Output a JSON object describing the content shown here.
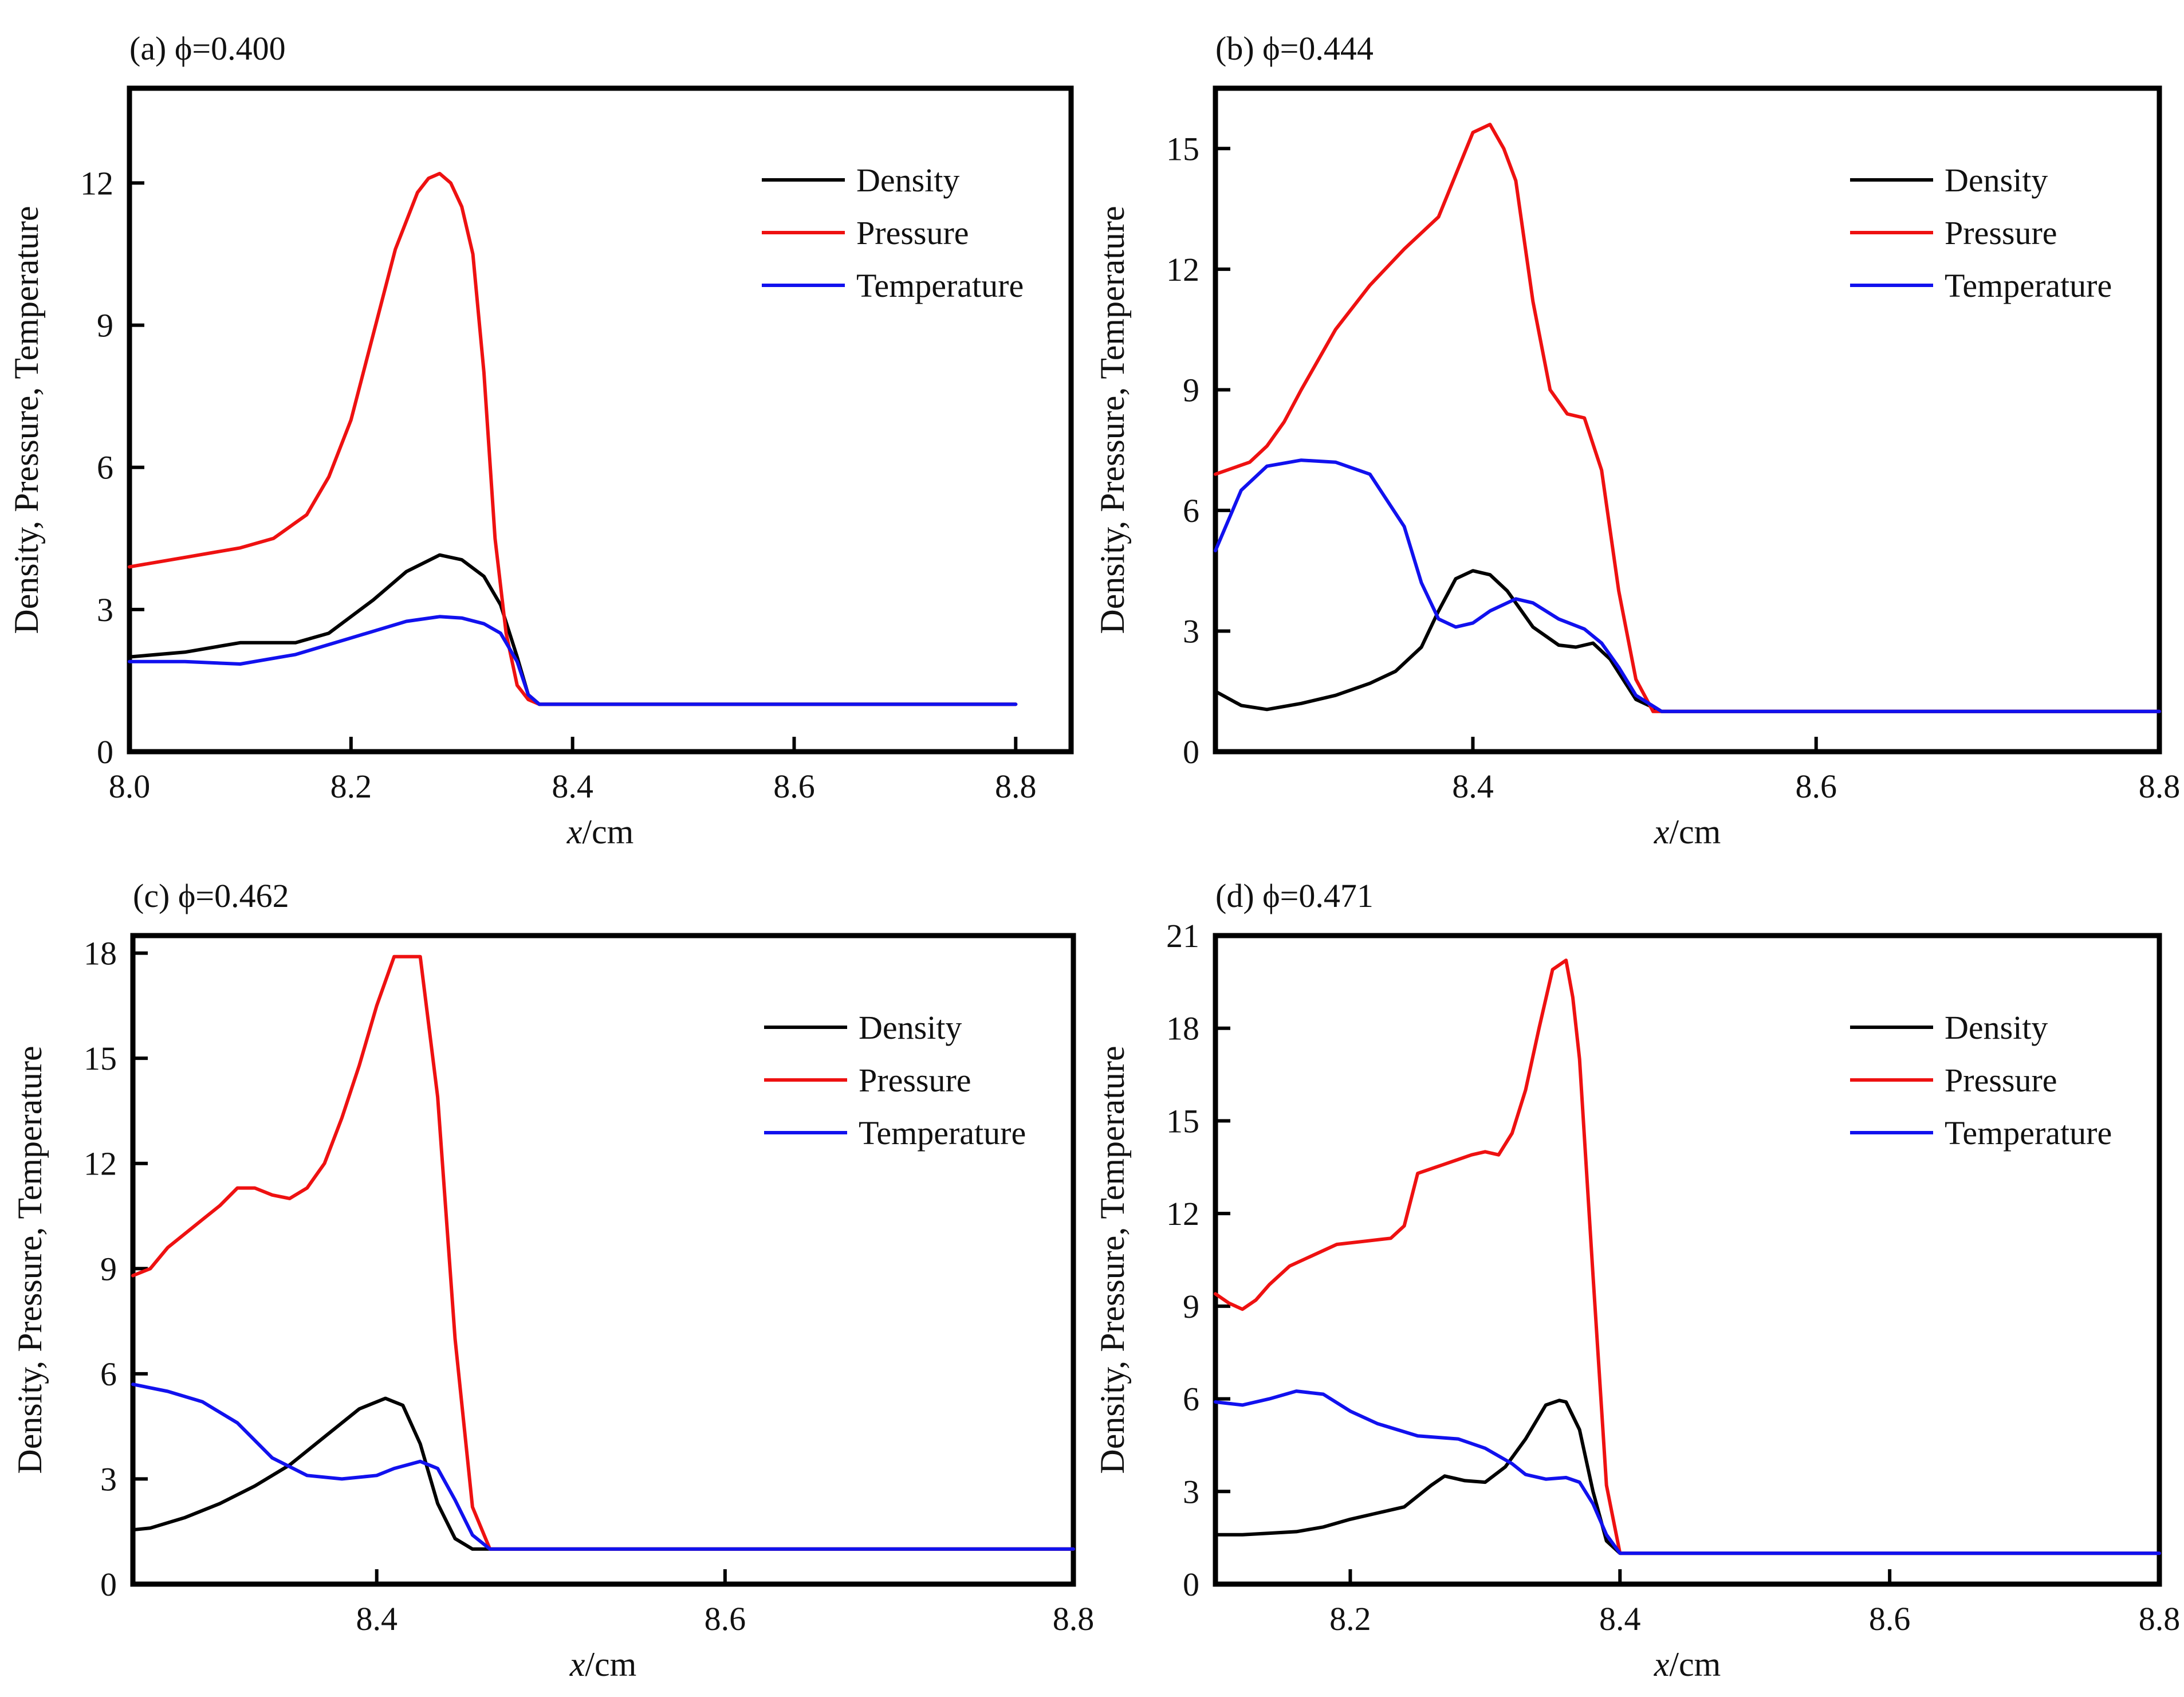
{
  "legend_labels": {
    "density": "Density",
    "pressure": "Pressure",
    "temperature": "Temperature"
  },
  "colors": {
    "density": "#000000",
    "pressure": "#ee1111",
    "temperature": "#1111ee"
  },
  "chart_data": [
    {
      "type": "line",
      "title": "(a) ϕ=0.400",
      "xlabel": "x/cm",
      "ylabel": "Density, Pressure, Temperature",
      "xlim": [
        8.0,
        8.85
      ],
      "ylim": [
        0,
        14.0
      ],
      "xticks": [
        8.0,
        8.2,
        8.4,
        8.6,
        8.8
      ],
      "xtick_labels": [
        "8.0",
        "8.2",
        "8.4",
        "8.6",
        "8.8"
      ],
      "yticks": [
        0,
        3,
        6,
        9,
        12
      ],
      "ytick_labels": [
        "0",
        "3",
        "6",
        "9",
        "12"
      ],
      "grid": false,
      "legend_position": "top-right",
      "series": [
        {
          "name": "Density",
          "key": "density",
          "x": [
            8.0,
            8.05,
            8.1,
            8.15,
            8.18,
            8.22,
            8.25,
            8.28,
            8.3,
            8.32,
            8.335,
            8.35,
            8.36,
            8.37,
            8.4,
            8.6,
            8.8
          ],
          "y": [
            2.0,
            2.1,
            2.3,
            2.3,
            2.5,
            3.2,
            3.8,
            4.15,
            4.05,
            3.7,
            3.1,
            2.0,
            1.2,
            1.0,
            1.0,
            1.0,
            1.0
          ]
        },
        {
          "name": "Pressure",
          "key": "pressure",
          "x": [
            8.0,
            8.05,
            8.1,
            8.13,
            8.16,
            8.18,
            8.2,
            8.22,
            8.24,
            8.26,
            8.27,
            8.28,
            8.29,
            8.3,
            8.31,
            8.32,
            8.33,
            8.34,
            8.35,
            8.36,
            8.37,
            8.4,
            8.6,
            8.8
          ],
          "y": [
            3.9,
            4.1,
            4.3,
            4.5,
            5.0,
            5.8,
            7.0,
            8.8,
            10.6,
            11.8,
            12.1,
            12.2,
            12.0,
            11.5,
            10.5,
            8.0,
            4.5,
            2.5,
            1.4,
            1.1,
            1.0,
            1.0,
            1.0,
            1.0
          ]
        },
        {
          "name": "Temperature",
          "key": "temperature",
          "x": [
            8.0,
            8.05,
            8.1,
            8.15,
            8.2,
            8.25,
            8.28,
            8.3,
            8.32,
            8.335,
            8.35,
            8.36,
            8.37,
            8.4,
            8.6,
            8.8
          ],
          "y": [
            1.9,
            1.9,
            1.85,
            2.05,
            2.4,
            2.75,
            2.85,
            2.82,
            2.7,
            2.5,
            1.9,
            1.2,
            1.0,
            1.0,
            1.0,
            1.0
          ]
        }
      ]
    },
    {
      "type": "line",
      "title": "(b) ϕ=0.444",
      "xlabel": "x/cm",
      "ylabel": "Density, Pressure, Temperature",
      "xlim": [
        8.25,
        8.8
      ],
      "ylim": [
        0,
        16.5
      ],
      "xticks": [
        8.4,
        8.6,
        8.8
      ],
      "xtick_labels": [
        "8.4",
        "8.6",
        "8.8"
      ],
      "yticks": [
        0,
        3,
        6,
        9,
        12,
        15
      ],
      "ytick_labels": [
        "0",
        "3",
        "6",
        "9",
        "12",
        "15"
      ],
      "grid": false,
      "legend_position": "top-right",
      "series": [
        {
          "name": "Density",
          "key": "density",
          "x": [
            8.25,
            8.265,
            8.28,
            8.3,
            8.32,
            8.34,
            8.355,
            8.37,
            8.38,
            8.39,
            8.4,
            8.41,
            8.42,
            8.435,
            8.45,
            8.46,
            8.47,
            8.48,
            8.495,
            8.51,
            8.6,
            8.8
          ],
          "y": [
            1.5,
            1.15,
            1.05,
            1.2,
            1.4,
            1.7,
            2.0,
            2.6,
            3.5,
            4.3,
            4.5,
            4.4,
            4.0,
            3.1,
            2.65,
            2.6,
            2.7,
            2.3,
            1.3,
            1.0,
            1.0,
            1.0
          ]
        },
        {
          "name": "Pressure",
          "key": "pressure",
          "x": [
            8.25,
            8.27,
            8.28,
            8.29,
            8.3,
            8.32,
            8.34,
            8.36,
            8.38,
            8.4,
            8.41,
            8.418,
            8.425,
            8.435,
            8.445,
            8.455,
            8.465,
            8.475,
            8.485,
            8.495,
            8.505,
            8.6,
            8.8
          ],
          "y": [
            6.9,
            7.2,
            7.6,
            8.2,
            9.0,
            10.5,
            11.6,
            12.5,
            13.3,
            15.4,
            15.6,
            15.0,
            14.2,
            11.2,
            9.0,
            8.4,
            8.3,
            7.0,
            4.0,
            1.8,
            1.0,
            1.0,
            1.0
          ]
        },
        {
          "name": "Temperature",
          "key": "temperature",
          "x": [
            8.25,
            8.265,
            8.28,
            8.3,
            8.32,
            8.34,
            8.36,
            8.37,
            8.38,
            8.39,
            8.4,
            8.41,
            8.425,
            8.435,
            8.45,
            8.465,
            8.475,
            8.485,
            8.495,
            8.51,
            8.6,
            8.8
          ],
          "y": [
            5.0,
            6.5,
            7.1,
            7.25,
            7.2,
            6.9,
            5.6,
            4.2,
            3.3,
            3.1,
            3.2,
            3.5,
            3.8,
            3.7,
            3.3,
            3.05,
            2.7,
            2.1,
            1.4,
            1.0,
            1.0,
            1.0
          ]
        }
      ]
    },
    {
      "type": "line",
      "title": "(c) ϕ=0.462",
      "xlabel": "x/cm",
      "ylabel": "Density, Pressure, Temperature",
      "xlim": [
        8.26,
        8.8
      ],
      "ylim": [
        0,
        18.5
      ],
      "xticks": [
        8.4,
        8.6,
        8.8
      ],
      "xtick_labels": [
        "8.4",
        "8.6",
        "8.8"
      ],
      "yticks": [
        0,
        3,
        6,
        9,
        12,
        15,
        18
      ],
      "ytick_labels": [
        "0",
        "3",
        "6",
        "9",
        "12",
        "15",
        "18"
      ],
      "grid": false,
      "legend_position": "top-right",
      "series": [
        {
          "name": "Density",
          "key": "density",
          "x": [
            8.26,
            8.27,
            8.29,
            8.31,
            8.33,
            8.35,
            8.37,
            8.39,
            8.405,
            8.415,
            8.425,
            8.435,
            8.445,
            8.455,
            8.465,
            8.6,
            8.8
          ],
          "y": [
            1.55,
            1.6,
            1.9,
            2.3,
            2.8,
            3.4,
            4.2,
            5.0,
            5.3,
            5.1,
            4.0,
            2.3,
            1.3,
            1.0,
            1.0,
            1.0,
            1.0
          ]
        },
        {
          "name": "Pressure",
          "key": "pressure",
          "x": [
            8.26,
            8.27,
            8.28,
            8.3,
            8.31,
            8.32,
            8.33,
            8.34,
            8.35,
            8.36,
            8.37,
            8.38,
            8.39,
            8.4,
            8.41,
            8.415,
            8.425,
            8.435,
            8.445,
            8.455,
            8.465,
            8.6,
            8.8
          ],
          "y": [
            8.8,
            9.0,
            9.6,
            10.4,
            10.8,
            11.3,
            11.3,
            11.1,
            11.0,
            11.3,
            12.0,
            13.3,
            14.8,
            16.5,
            17.9,
            17.9,
            17.9,
            13.9,
            7.0,
            2.2,
            1.0,
            1.0,
            1.0
          ]
        },
        {
          "name": "Temperature",
          "key": "temperature",
          "x": [
            8.26,
            8.28,
            8.3,
            8.32,
            8.34,
            8.36,
            8.38,
            8.4,
            8.41,
            8.425,
            8.435,
            8.445,
            8.455,
            8.465,
            8.6,
            8.8
          ],
          "y": [
            5.7,
            5.5,
            5.2,
            4.6,
            3.6,
            3.1,
            3.0,
            3.1,
            3.3,
            3.5,
            3.3,
            2.4,
            1.4,
            1.0,
            1.0,
            1.0
          ]
        }
      ]
    },
    {
      "type": "line",
      "title": "(d) ϕ=0.471",
      "xlabel": "x/cm",
      "ylabel": "Density, Pressure, Temperature",
      "xlim": [
        8.1,
        8.8
      ],
      "ylim": [
        0,
        21
      ],
      "xticks": [
        8.2,
        8.4,
        8.6,
        8.8
      ],
      "xtick_labels": [
        "8.2",
        "8.4",
        "8.6",
        "8.8"
      ],
      "yticks": [
        0,
        3,
        6,
        9,
        12,
        15,
        18,
        21
      ],
      "ytick_labels": [
        "0",
        "3",
        "6",
        "9",
        "12",
        "15",
        "18",
        "21"
      ],
      "grid": false,
      "legend_position": "top-right",
      "series": [
        {
          "name": "Density",
          "key": "density",
          "x": [
            8.1,
            8.12,
            8.14,
            8.16,
            8.18,
            8.2,
            8.22,
            8.24,
            8.26,
            8.27,
            8.285,
            8.3,
            8.315,
            8.33,
            8.345,
            8.355,
            8.36,
            8.37,
            8.38,
            8.39,
            8.4,
            8.6,
            8.8
          ],
          "y": [
            1.6,
            1.6,
            1.65,
            1.7,
            1.85,
            2.1,
            2.3,
            2.5,
            3.2,
            3.5,
            3.35,
            3.3,
            3.8,
            4.7,
            5.8,
            5.95,
            5.9,
            5.0,
            3.0,
            1.4,
            1.0,
            1.0,
            1.0
          ]
        },
        {
          "name": "Pressure",
          "key": "pressure",
          "x": [
            8.1,
            8.11,
            8.12,
            8.13,
            8.14,
            8.155,
            8.17,
            8.19,
            8.21,
            8.23,
            8.24,
            8.25,
            8.27,
            8.29,
            8.3,
            8.31,
            8.32,
            8.33,
            8.34,
            8.35,
            8.36,
            8.365,
            8.37,
            8.38,
            8.39,
            8.4,
            8.6,
            8.8
          ],
          "y": [
            9.4,
            9.1,
            8.9,
            9.2,
            9.7,
            10.3,
            10.6,
            11.0,
            11.1,
            11.2,
            11.6,
            13.3,
            13.6,
            13.9,
            14.0,
            13.9,
            14.6,
            16.0,
            18.0,
            19.9,
            20.2,
            19.0,
            17.0,
            10.0,
            3.2,
            1.0,
            1.0,
            1.0
          ]
        },
        {
          "name": "Temperature",
          "key": "temperature",
          "x": [
            8.1,
            8.12,
            8.14,
            8.16,
            8.18,
            8.2,
            8.22,
            8.25,
            8.28,
            8.3,
            8.32,
            8.33,
            8.345,
            8.36,
            8.37,
            8.38,
            8.39,
            8.4,
            8.6,
            8.8
          ],
          "y": [
            5.9,
            5.8,
            6.0,
            6.25,
            6.15,
            5.6,
            5.2,
            4.8,
            4.7,
            4.4,
            3.9,
            3.55,
            3.4,
            3.45,
            3.3,
            2.6,
            1.6,
            1.0,
            1.0,
            1.0
          ]
        }
      ]
    }
  ]
}
